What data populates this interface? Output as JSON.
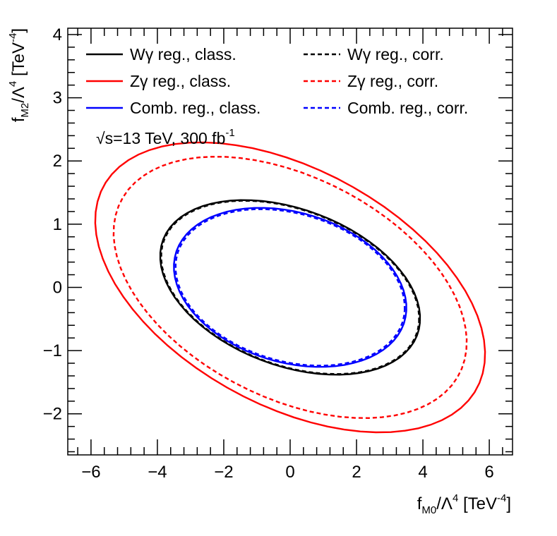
{
  "chart_data": {
    "type": "line",
    "title": "",
    "xlabel": {
      "base": "f",
      "sub": "M0",
      "mid": "/Λ",
      "sup1": "4",
      "unit": " [TeV",
      "sup2": "-4",
      "close": "]"
    },
    "ylabel": {
      "base": "f",
      "sub": "M2",
      "mid": "/Λ",
      "sup1": "4",
      "unit": " [TeV",
      "sup2": "-4",
      "close": "]"
    },
    "xlim": [
      -6.7,
      6.7
    ],
    "ylim": [
      -2.65,
      4.1
    ],
    "xticks": [
      -6,
      -4,
      -2,
      0,
      2,
      4,
      6
    ],
    "xtick_labels": [
      "−6",
      "−4",
      "−2",
      "0",
      "2",
      "4",
      "6"
    ],
    "yticks": [
      -2,
      -1,
      0,
      1,
      2,
      3,
      4
    ],
    "ytick_labels": [
      "−2",
      "−1",
      "0",
      "1",
      "2",
      "3",
      "4"
    ],
    "grid": false,
    "legend_placement": "top",
    "annotation": {
      "sqrt": "√",
      "text": "s=13 TeV, 300 fb",
      "sup": "-1"
    },
    "series": [
      {
        "name": "Wγ reg., class.",
        "color": "#000000",
        "dash": "solid",
        "shape": "ellipse",
        "center": [
          0.0,
          0.0
        ],
        "semi_axes": [
          3.95,
          1.28
        ],
        "rotation_deg": -8.0
      },
      {
        "name": "Zγ reg., class.",
        "color": "#ff0000",
        "dash": "solid",
        "shape": "ellipse",
        "center": [
          0.0,
          0.0
        ],
        "semi_axes": [
          5.98,
          2.0
        ],
        "rotation_deg": -11.5
      },
      {
        "name": "Comb. reg., class.",
        "color": "#0000ff",
        "dash": "solid",
        "shape": "ellipse",
        "center": [
          0.0,
          0.0
        ],
        "semi_axes": [
          3.52,
          1.21
        ],
        "rotation_deg": -6.0
      },
      {
        "name": "Wγ reg., corr.",
        "color": "#000000",
        "dash": "dashed",
        "shape": "ellipse",
        "center": [
          0.0,
          0.0
        ],
        "semi_axes": [
          3.92,
          1.27
        ],
        "rotation_deg": -8.0
      },
      {
        "name": "Zγ reg., corr.",
        "color": "#ff0000",
        "dash": "dashed",
        "shape": "ellipse",
        "center": [
          0.0,
          0.0
        ],
        "semi_axes": [
          5.4,
          1.85
        ],
        "rotation_deg": -10.5
      },
      {
        "name": "Comb. reg., corr.",
        "color": "#0000ff",
        "dash": "dashed",
        "shape": "ellipse",
        "center": [
          0.0,
          0.0
        ],
        "semi_axes": [
          3.47,
          1.19
        ],
        "rotation_deg": -6.0
      }
    ]
  }
}
